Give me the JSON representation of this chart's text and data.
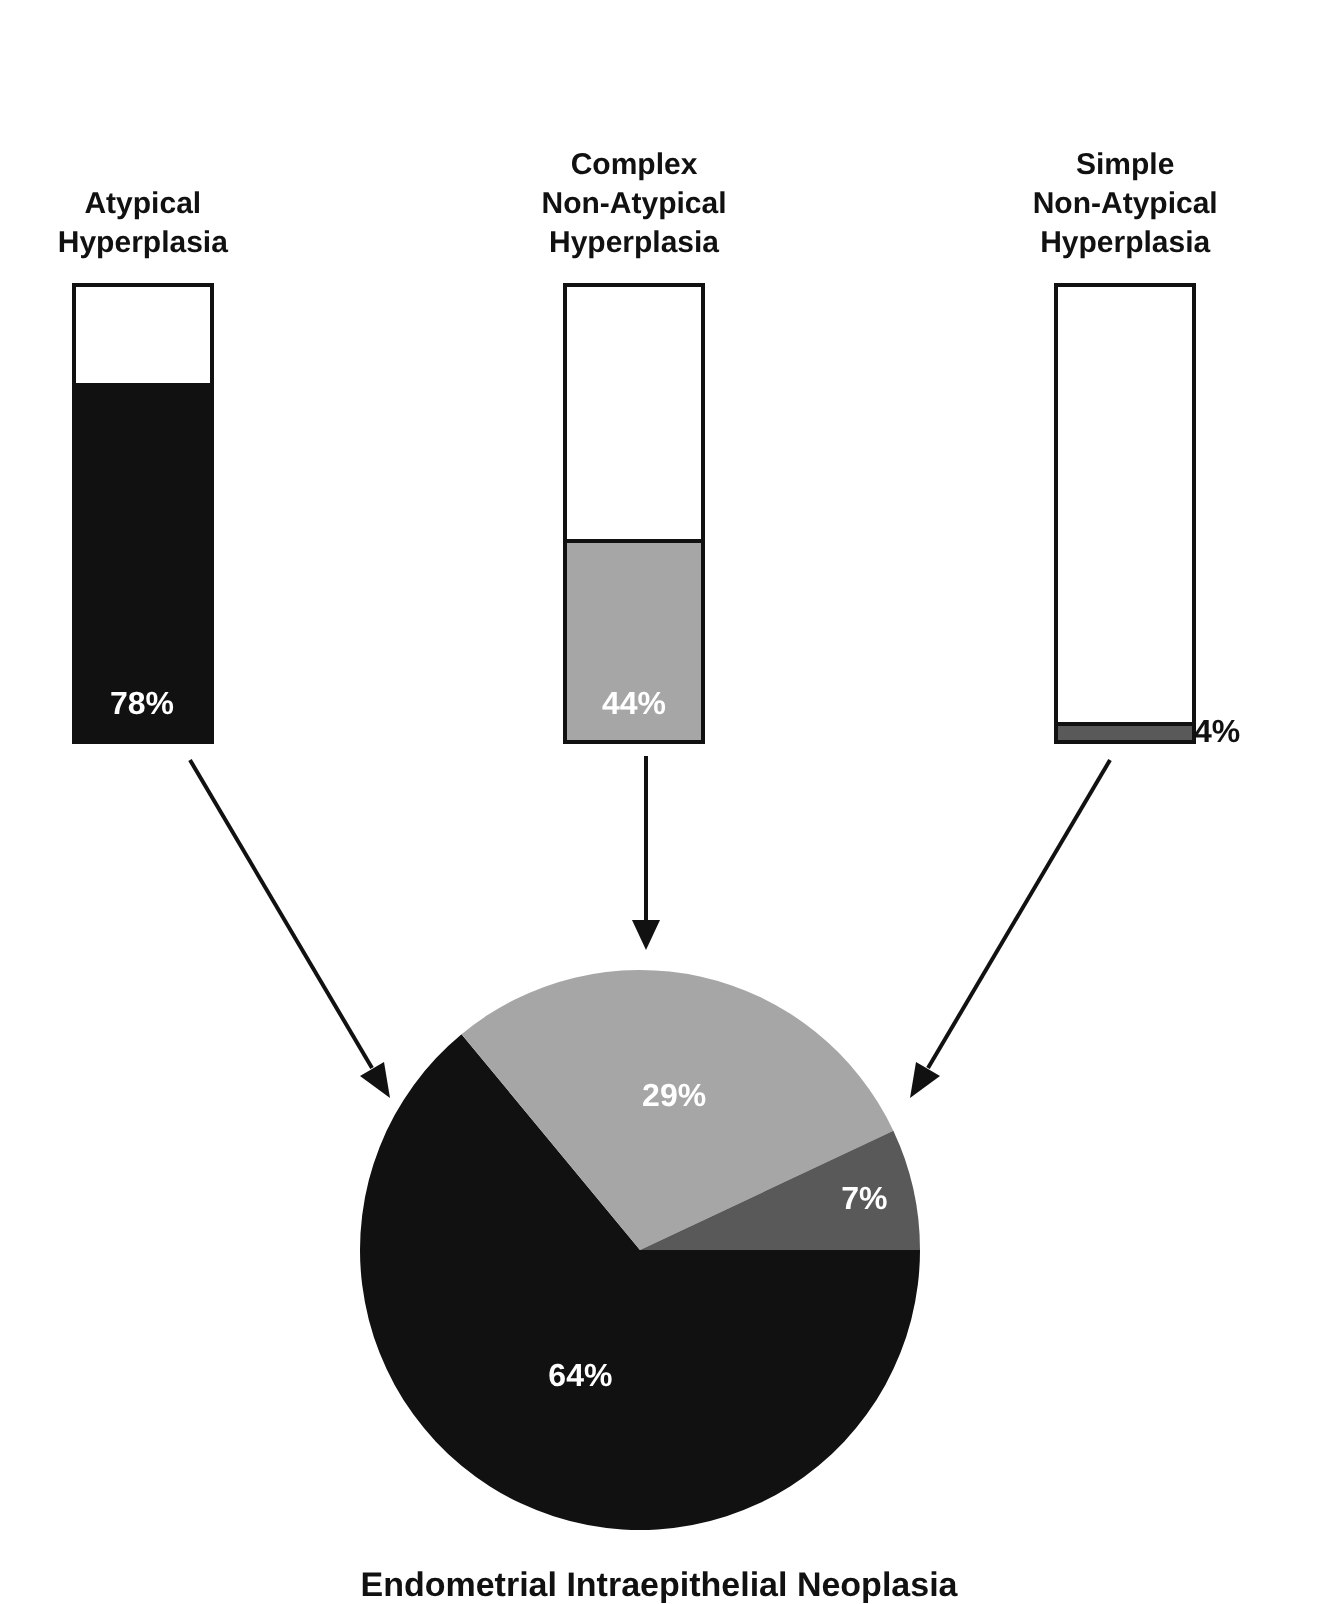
{
  "chart_data": [
    {
      "type": "bar",
      "stacked": true,
      "categories": [
        "Atypical Hyperplasia",
        "Complex Non-Atypical Hyperplasia",
        "Simple Non-Atypical Hyperplasia"
      ],
      "series": [
        {
          "colors": [
            "#111111",
            "#a6a6a6",
            "#595959"
          ],
          "values": [
            78,
            44,
            4
          ],
          "value_labels": [
            "78%",
            "44%",
            "4%"
          ]
        },
        {
          "color": "#ffffff",
          "values": [
            22,
            56,
            96
          ]
        }
      ]
    },
    {
      "type": "pie",
      "title": "Endometrial Intraepithelial Neoplasia",
      "categories": [
        null,
        null,
        null
      ],
      "values": [
        64,
        29,
        7
      ],
      "colors": [
        "#111111",
        "#a6a6a6",
        "#595959"
      ],
      "value_labels": [
        "64%",
        "29%",
        "7%"
      ]
    }
  ]
}
